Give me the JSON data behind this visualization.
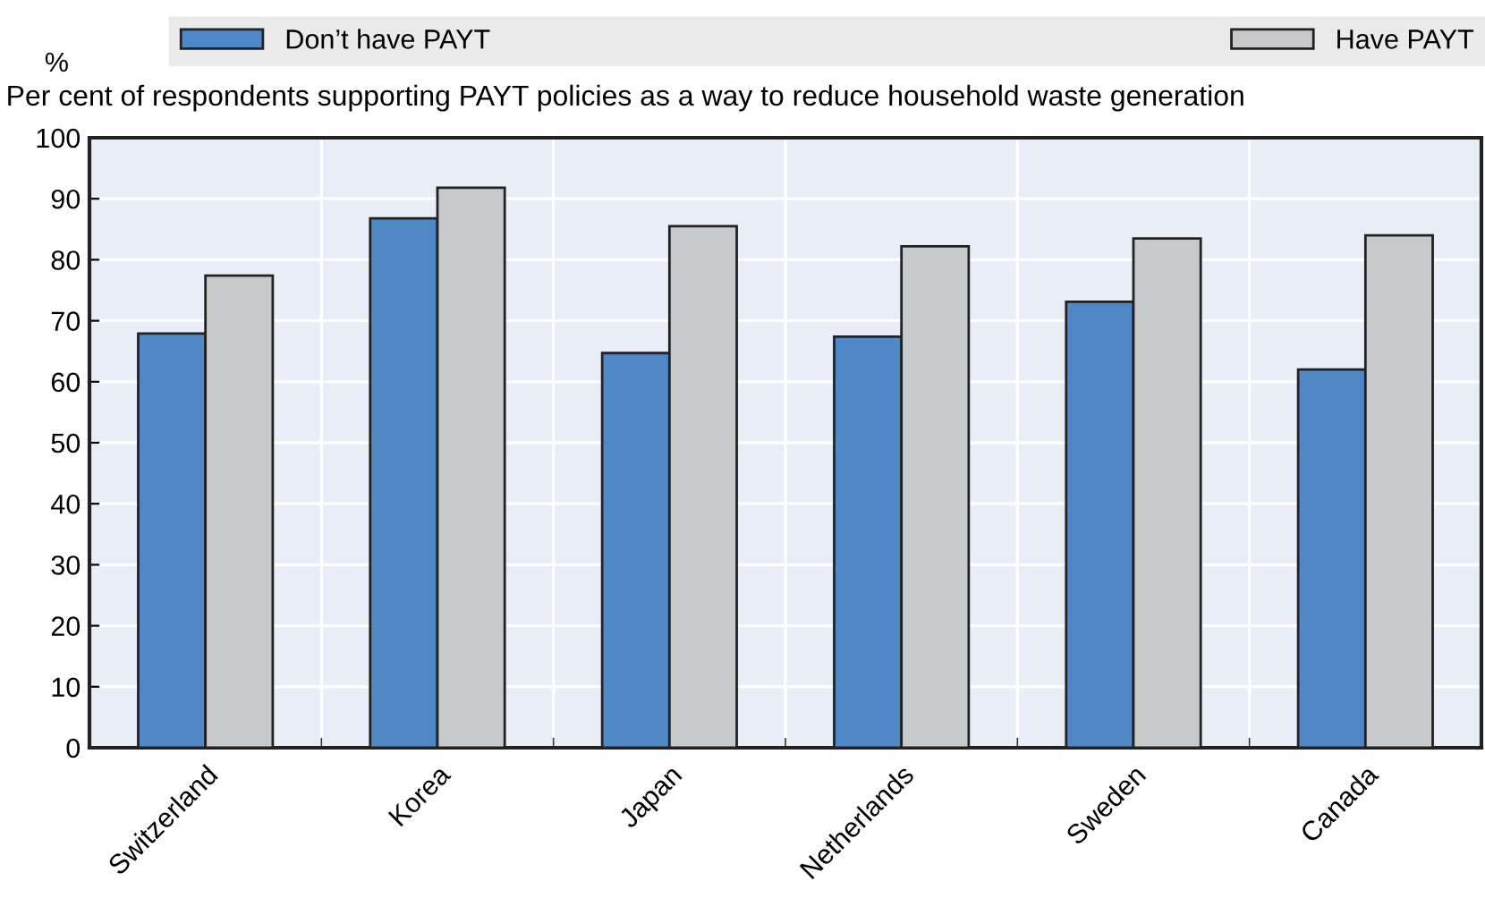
{
  "chart_data": {
    "type": "bar",
    "title": "Per cent of respondents supporting PAYT policies as a way to reduce household waste generation",
    "ylabel": "%",
    "categories": [
      "Switzerland",
      "Korea",
      "Japan",
      "Netherlands",
      "Sweden",
      "Canada"
    ],
    "series": [
      {
        "name": "Don’t have PAYT",
        "color": "#4f88c6",
        "values": [
          67.9,
          86.8,
          64.7,
          67.4,
          73.1,
          62.0
        ]
      },
      {
        "name": "Have PAYT",
        "color": "#c8c9cb",
        "values": [
          77.4,
          91.8,
          85.5,
          82.2,
          83.5,
          84.0
        ]
      }
    ],
    "ylim": [
      0,
      100
    ],
    "yticks": [
      0,
      10,
      20,
      30,
      40,
      50,
      60,
      70,
      80,
      90,
      100
    ],
    "grid": true,
    "legend": "top"
  }
}
